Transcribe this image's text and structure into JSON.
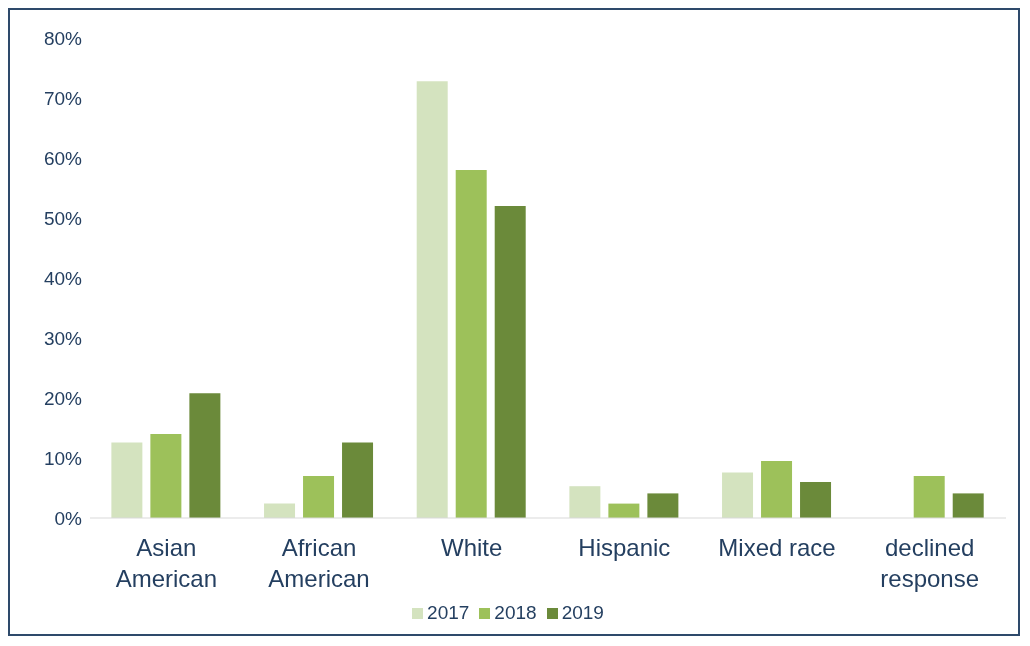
{
  "chart_data": {
    "type": "bar",
    "categories": [
      "Asian American",
      "African American",
      "White",
      "Hispanic",
      "Mixed race",
      "declined response"
    ],
    "series": [
      {
        "name": "2017",
        "color": "#d4e3bf",
        "values": [
          12.6,
          2.4,
          72.8,
          5.3,
          7.6,
          0
        ]
      },
      {
        "name": "2018",
        "color": "#9dc15a",
        "values": [
          14,
          7,
          58,
          2.4,
          9.5,
          7
        ]
      },
      {
        "name": "2019",
        "color": "#6b8a3a",
        "values": [
          20.8,
          12.6,
          52,
          4.1,
          6,
          4.1
        ]
      }
    ],
    "ylim": [
      0,
      80
    ],
    "yticks": [
      {
        "value": 0,
        "label": "0%"
      },
      {
        "value": 10,
        "label": "10%"
      },
      {
        "value": 20,
        "label": "20%"
      },
      {
        "value": 30,
        "label": "30%"
      },
      {
        "value": 40,
        "label": "40%"
      },
      {
        "value": 50,
        "label": "50%"
      },
      {
        "value": 60,
        "label": "60%"
      },
      {
        "value": 70,
        "label": "70%"
      },
      {
        "value": 80,
        "label": "80%"
      }
    ],
    "grid": false,
    "legend": "bottom"
  }
}
